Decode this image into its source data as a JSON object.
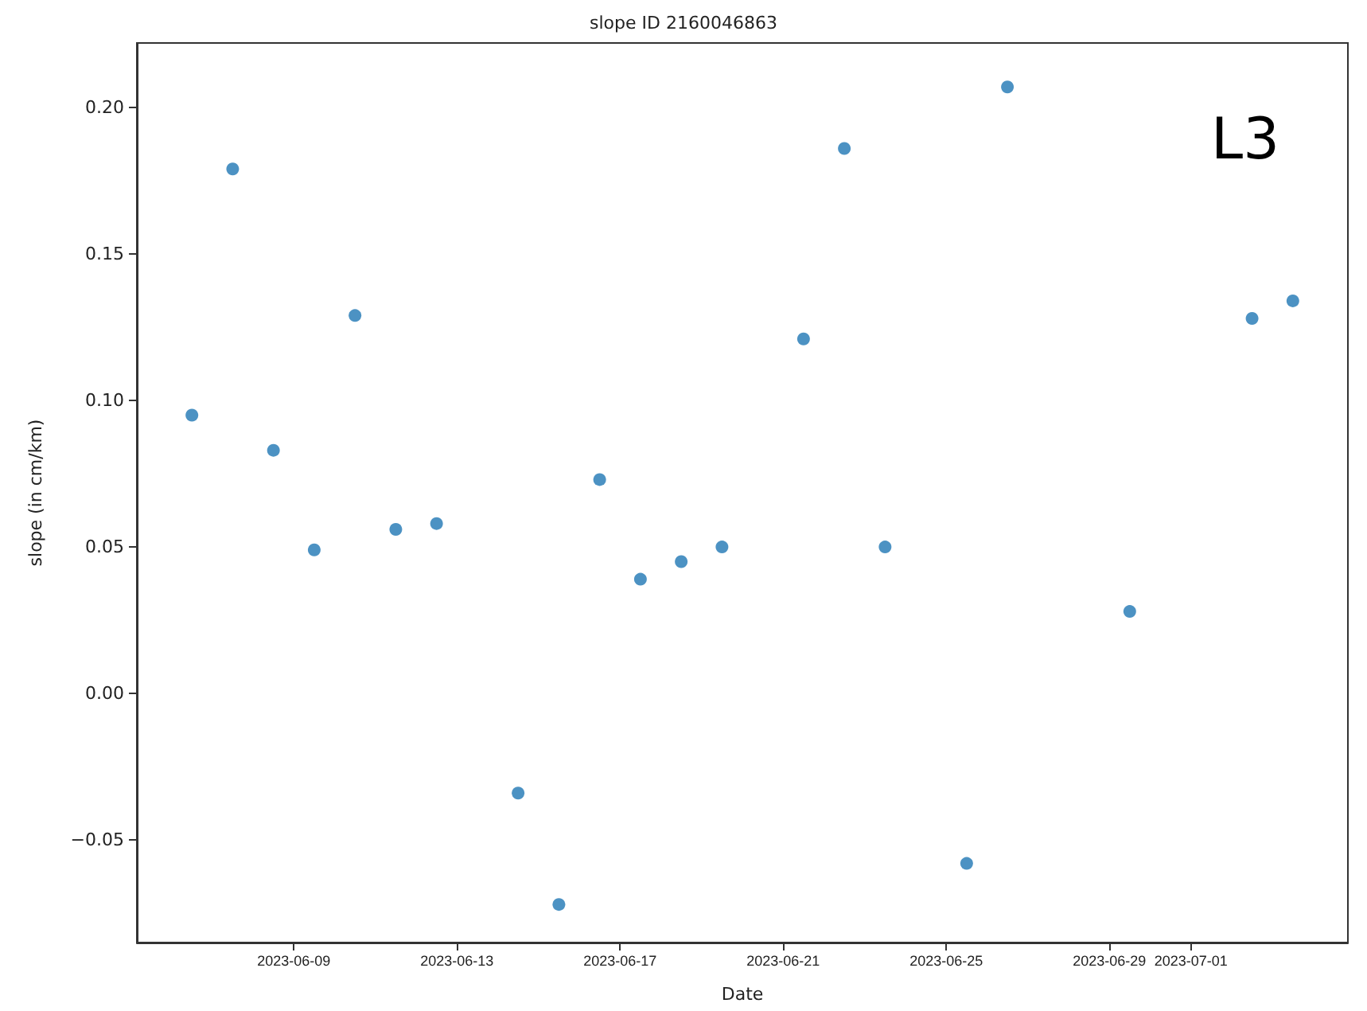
{
  "chart_data": {
    "type": "scatter",
    "title": "slope ID 2160046863",
    "xlabel": "Date",
    "ylabel": "slope (in cm/km)",
    "annotations": [
      "L3"
    ],
    "x": [
      "2023-06-06T12:00",
      "2023-06-07T12:00",
      "2023-06-08T12:00",
      "2023-06-09T12:00",
      "2023-06-10T12:00",
      "2023-06-11T12:00",
      "2023-06-12T12:00",
      "2023-06-14T12:00",
      "2023-06-15T12:00",
      "2023-06-16T12:00",
      "2023-06-17T12:00",
      "2023-06-18T12:00",
      "2023-06-19T12:00",
      "2023-06-21T12:00",
      "2023-06-22T12:00",
      "2023-06-23T12:00",
      "2023-06-25T12:00",
      "2023-06-26T12:00",
      "2023-06-29T12:00",
      "2023-07-02T12:00",
      "2023-07-03T12:00"
    ],
    "series": [
      {
        "color": "#1f77b4",
        "values": [
          0.095,
          0.179,
          0.083,
          0.049,
          0.129,
          0.056,
          0.058,
          -0.034,
          -0.072,
          0.073,
          0.039,
          0.045,
          0.05,
          0.121,
          0.186,
          0.05,
          -0.058,
          0.207,
          0.028,
          0.128,
          0.134
        ]
      }
    ],
    "xlim": [
      "2023-06-05T03:36",
      "2023-07-04T20:24"
    ],
    "xticks": [
      {
        "value": "2023-06-09",
        "label": "2023-06-09"
      },
      {
        "value": "2023-06-13",
        "label": "2023-06-13"
      },
      {
        "value": "2023-06-17",
        "label": "2023-06-17"
      },
      {
        "value": "2023-06-21",
        "label": "2023-06-21"
      },
      {
        "value": "2023-06-25",
        "label": "2023-06-25"
      },
      {
        "value": "2023-06-29",
        "label": "2023-06-29"
      },
      {
        "value": "2023-07-01",
        "label": "2023-07-01"
      }
    ],
    "ylim": [
      -0.085,
      0.222
    ],
    "yticks": [
      {
        "value": -0.05,
        "label": "−0.05"
      },
      {
        "value": 0,
        "label": "0.00"
      },
      {
        "value": 0.05,
        "label": "0.05"
      },
      {
        "value": 0.1,
        "label": "0.10"
      },
      {
        "value": 0.15,
        "label": "0.15"
      },
      {
        "value": 0.2,
        "label": "0.20"
      }
    ],
    "marker": "circle",
    "grid": false
  }
}
